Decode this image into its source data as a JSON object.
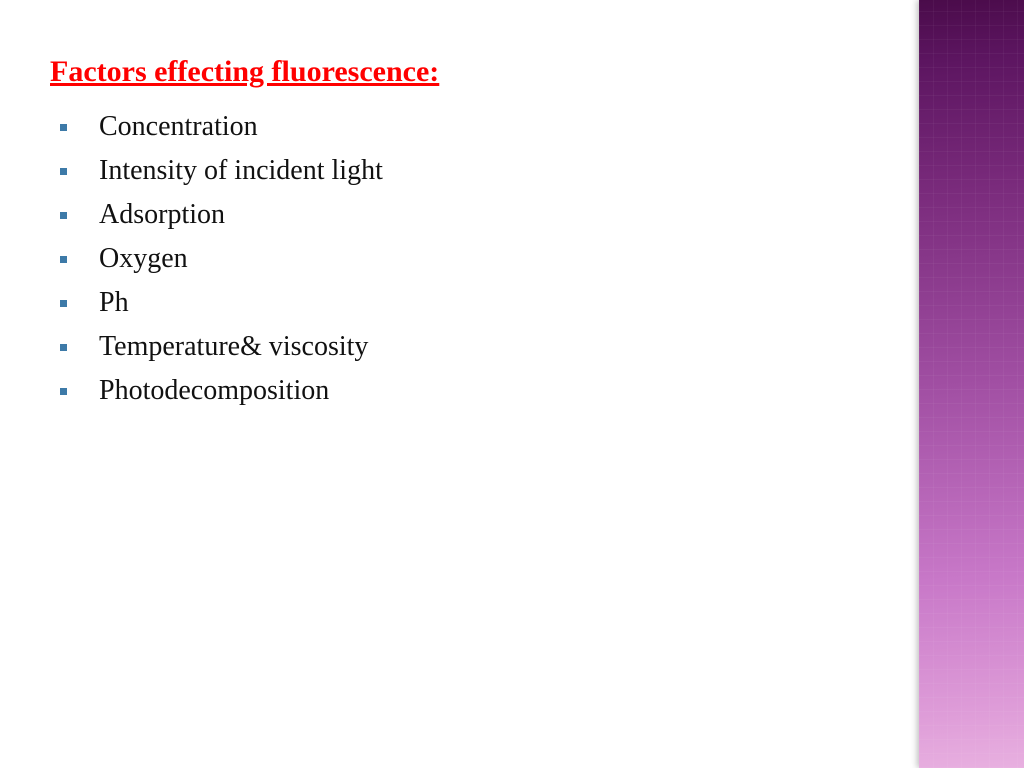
{
  "title": "Factors effecting fluorescence:",
  "title_color": "#ff0000",
  "title_fontsize": 30,
  "bullet_color": "#3d7aa8",
  "item_fontsize": 28,
  "item_color": "#111111",
  "background_color": "#ffffff",
  "sidebar_gradient": [
    "#4a0b4a",
    "#5c1560",
    "#7a2b7c",
    "#a14fa3",
    "#c878c8",
    "#de9cd8",
    "#e8b0e0"
  ],
  "items": [
    "Concentration",
    "Intensity of incident light",
    "Adsorption",
    "Oxygen",
    "Ph",
    "Temperature& viscosity",
    "Photodecomposition"
  ]
}
